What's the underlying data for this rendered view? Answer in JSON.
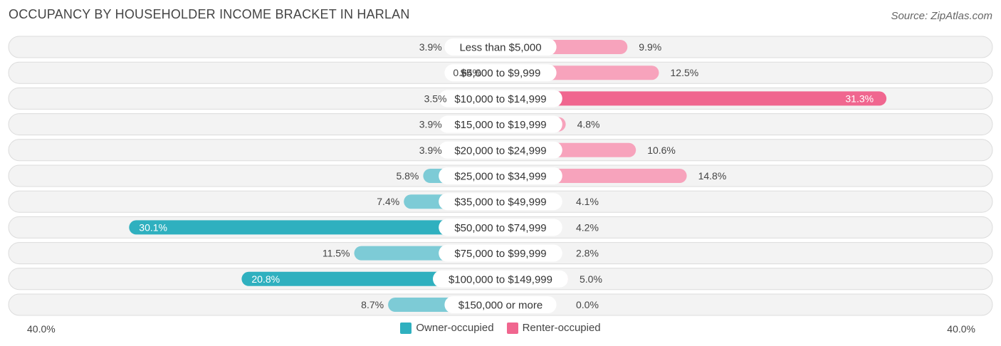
{
  "chart_data": {
    "type": "bar",
    "orientation": "diverging-horizontal",
    "title": "OCCUPANCY BY HOUSEHOLDER INCOME BRACKET IN HARLAN",
    "source": "Source: ZipAtlas.com",
    "categories": [
      "Less than $5,000",
      "$5,000 to $9,999",
      "$10,000 to $14,999",
      "$15,000 to $19,999",
      "$20,000 to $24,999",
      "$25,000 to $34,999",
      "$35,000 to $49,999",
      "$50,000 to $74,999",
      "$75,000 to $99,999",
      "$100,000 to $149,999",
      "$150,000 or more"
    ],
    "series": [
      {
        "name": "Owner-occupied",
        "color": "#2fb0bf",
        "values": [
          3.9,
          0.64,
          3.5,
          3.9,
          3.9,
          5.8,
          7.4,
          30.1,
          11.5,
          20.8,
          8.7
        ],
        "labels": [
          "3.9%",
          "0.64%",
          "3.5%",
          "3.9%",
          "3.9%",
          "5.8%",
          "7.4%",
          "30.1%",
          "11.5%",
          "20.8%",
          "8.7%"
        ]
      },
      {
        "name": "Renter-occupied",
        "color": "#f0668f",
        "values": [
          9.9,
          12.5,
          31.3,
          4.8,
          10.6,
          14.8,
          4.1,
          4.2,
          2.8,
          5.0,
          0.0
        ],
        "labels": [
          "9.9%",
          "12.5%",
          "31.3%",
          "4.8%",
          "10.6%",
          "14.8%",
          "4.1%",
          "4.2%",
          "2.8%",
          "5.0%",
          "0.0%"
        ]
      }
    ],
    "xlim": [
      -40,
      40
    ],
    "axis_left_label": "40.0%",
    "axis_right_label": "40.0%",
    "legend_position": "bottom-center"
  }
}
